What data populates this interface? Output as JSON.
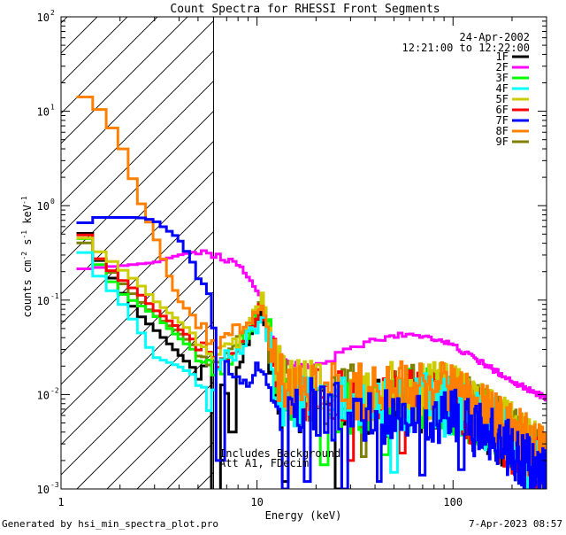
{
  "chart_data": {
    "type": "line",
    "title": "Count Spectra for RHESSI Front Segments",
    "date": "24-Apr-2002",
    "time_range": "12:21:00 to 12:22:00",
    "xlabel": "Energy (keV)",
    "ylabel_main": "counts cm",
    "ylabel_e1": "-2",
    "ylabel_mid": " s",
    "ylabel_e2": "-1",
    "ylabel_unit": " keV",
    "ylabel_e3": "-1",
    "x_scale": "log",
    "y_scale": "log",
    "xlim": [
      1,
      300
    ],
    "ylim": [
      0.001,
      100
    ],
    "x_tick_labels": [
      {
        "value": 1,
        "label": "1"
      },
      {
        "value": 10,
        "label": "10"
      },
      {
        "value": 100,
        "label": "100"
      }
    ],
    "y_tick_labels": [
      {
        "exp": -3,
        "label": "10",
        "sup": "-3"
      },
      {
        "exp": -2,
        "label": "10",
        "sup": "-2"
      },
      {
        "exp": -1,
        "label": "10",
        "sup": "-1"
      },
      {
        "exp": 0,
        "label": "10",
        "sup": "0"
      },
      {
        "exp": 1,
        "label": "10",
        "sup": "1"
      },
      {
        "exp": 2,
        "label": "10",
        "sup": "2"
      }
    ],
    "hatched_region": [
      1,
      6
    ],
    "annotations": [
      "Includes Background",
      "Att A1, FDecim"
    ],
    "series": [
      {
        "name": "1F",
        "color": "#000000",
        "anchors": [
          [
            1.2,
            0.75
          ],
          [
            1.5,
            0.3
          ],
          [
            2,
            0.13
          ],
          [
            2.5,
            0.07
          ],
          [
            3,
            0.05
          ],
          [
            4,
            0.027
          ],
          [
            5,
            0.017
          ],
          [
            5.6,
            0.025
          ],
          [
            6,
            0.02
          ],
          [
            7,
            0.012
          ],
          [
            8,
            0.02
          ],
          [
            9,
            0.035
          ],
          [
            10,
            0.06
          ],
          [
            10.7,
            0.09
          ],
          [
            11.5,
            0.03
          ],
          [
            13,
            0.01
          ],
          [
            16,
            0.008
          ],
          [
            20,
            0.008
          ],
          [
            30,
            0.007
          ],
          [
            40,
            0.007
          ],
          [
            60,
            0.008
          ],
          [
            80,
            0.009
          ],
          [
            100,
            0.008
          ],
          [
            150,
            0.005
          ],
          [
            200,
            0.003
          ],
          [
            300,
            0.0015
          ]
        ],
        "dips": [
          [
            6.2,
            0.0009
          ],
          [
            7.5,
            0.004
          ],
          [
            14,
            0.0012
          ],
          [
            26,
            0.001
          ]
        ]
      },
      {
        "name": "2F",
        "color": "#ff00ff",
        "anchors": [
          [
            1.2,
            0.21
          ],
          [
            1.5,
            0.22
          ],
          [
            2,
            0.23
          ],
          [
            3,
            0.25
          ],
          [
            4,
            0.3
          ],
          [
            5,
            0.33
          ],
          [
            6,
            0.3
          ],
          [
            7,
            0.27
          ],
          [
            8,
            0.23
          ],
          [
            9,
            0.18
          ],
          [
            10,
            0.13
          ],
          [
            11,
            0.07
          ],
          [
            12,
            0.04
          ],
          [
            14,
            0.022
          ],
          [
            17,
            0.02
          ],
          [
            20,
            0.02
          ],
          [
            25,
            0.025
          ],
          [
            30,
            0.03
          ],
          [
            40,
            0.038
          ],
          [
            60,
            0.044
          ],
          [
            80,
            0.04
          ],
          [
            100,
            0.033
          ],
          [
            150,
            0.02
          ],
          [
            200,
            0.014
          ],
          [
            300,
            0.009
          ]
        ],
        "dips": []
      },
      {
        "name": "3F",
        "color": "#00ff00",
        "anchors": [
          [
            1.2,
            0.65
          ],
          [
            1.5,
            0.27
          ],
          [
            2,
            0.12
          ],
          [
            2.5,
            0.09
          ],
          [
            3,
            0.07
          ],
          [
            4,
            0.04
          ],
          [
            5,
            0.027
          ],
          [
            6,
            0.018
          ],
          [
            7,
            0.02
          ],
          [
            8,
            0.03
          ],
          [
            9,
            0.045
          ],
          [
            10,
            0.07
          ],
          [
            10.7,
            0.1
          ],
          [
            11.5,
            0.035
          ],
          [
            13,
            0.012
          ],
          [
            16,
            0.009
          ],
          [
            20,
            0.009
          ],
          [
            30,
            0.008
          ],
          [
            40,
            0.008
          ],
          [
            60,
            0.009
          ],
          [
            80,
            0.009
          ],
          [
            100,
            0.008
          ],
          [
            150,
            0.005
          ],
          [
            200,
            0.003
          ],
          [
            300,
            0.0015
          ]
        ],
        "dips": [
          [
            22,
            0.0018
          ],
          [
            45,
            0.0023
          ]
        ]
      },
      {
        "name": "4F",
        "color": "#00ffff",
        "anchors": [
          [
            1.2,
            0.45
          ],
          [
            1.5,
            0.2
          ],
          [
            2,
            0.1
          ],
          [
            2.5,
            0.05
          ],
          [
            3,
            0.025
          ],
          [
            4,
            0.02
          ],
          [
            5,
            0.015
          ],
          [
            5.8,
            0.007
          ],
          [
            6,
            0.012
          ],
          [
            7,
            0.025
          ],
          [
            8,
            0.025
          ],
          [
            9,
            0.04
          ],
          [
            10,
            0.05
          ],
          [
            10.7,
            0.08
          ],
          [
            11.5,
            0.03
          ],
          [
            13,
            0.01
          ],
          [
            16,
            0.008
          ],
          [
            20,
            0.008
          ],
          [
            30,
            0.007
          ],
          [
            40,
            0.007
          ],
          [
            60,
            0.008
          ],
          [
            80,
            0.008
          ],
          [
            100,
            0.007
          ],
          [
            150,
            0.005
          ],
          [
            200,
            0.003
          ],
          [
            300,
            0.0015
          ]
        ],
        "dips": [
          [
            50,
            0.0015
          ]
        ]
      },
      {
        "name": "5F",
        "color": "#cccc00",
        "anchors": [
          [
            1.2,
            0.55
          ],
          [
            1.5,
            0.35
          ],
          [
            2,
            0.22
          ],
          [
            2.5,
            0.15
          ],
          [
            3,
            0.1
          ],
          [
            4,
            0.06
          ],
          [
            5,
            0.04
          ],
          [
            6,
            0.025
          ],
          [
            7,
            0.03
          ],
          [
            8,
            0.035
          ],
          [
            9,
            0.05
          ],
          [
            10,
            0.08
          ],
          [
            10.7,
            0.12
          ],
          [
            11.5,
            0.04
          ],
          [
            13,
            0.015
          ],
          [
            16,
            0.012
          ],
          [
            20,
            0.012
          ],
          [
            30,
            0.011
          ],
          [
            40,
            0.011
          ],
          [
            60,
            0.011
          ],
          [
            80,
            0.011
          ],
          [
            100,
            0.01
          ],
          [
            150,
            0.006
          ],
          [
            200,
            0.004
          ],
          [
            300,
            0.002
          ]
        ],
        "dips": []
      },
      {
        "name": "6F",
        "color": "#ff0000",
        "anchors": [
          [
            1.2,
            0.7
          ],
          [
            1.5,
            0.3
          ],
          [
            2,
            0.17
          ],
          [
            2.5,
            0.12
          ],
          [
            3,
            0.08
          ],
          [
            4,
            0.05
          ],
          [
            5,
            0.035
          ],
          [
            6,
            0.025
          ],
          [
            7,
            0.02
          ],
          [
            8,
            0.03
          ],
          [
            9,
            0.045
          ],
          [
            10,
            0.07
          ],
          [
            10.7,
            0.1
          ],
          [
            11.5,
            0.035
          ],
          [
            13,
            0.012
          ],
          [
            16,
            0.009
          ],
          [
            20,
            0.009
          ],
          [
            30,
            0.009
          ],
          [
            40,
            0.009
          ],
          [
            60,
            0.009
          ],
          [
            80,
            0.009
          ],
          [
            100,
            0.008
          ],
          [
            150,
            0.005
          ],
          [
            200,
            0.003
          ],
          [
            300,
            0.0015
          ]
        ],
        "dips": [
          [
            30,
            0.002
          ],
          [
            55,
            0.0024
          ]
        ]
      },
      {
        "name": "7F",
        "color": "#0000ff",
        "anchors": [
          [
            1.2,
            0.6
          ],
          [
            1.5,
            0.75
          ],
          [
            2,
            0.75
          ],
          [
            2.5,
            0.75
          ],
          [
            3,
            0.7
          ],
          [
            4,
            0.45
          ],
          [
            5,
            0.2
          ],
          [
            5.6,
            0.13
          ],
          [
            6,
            0.05
          ],
          [
            7,
            0.02
          ],
          [
            8,
            0.015
          ],
          [
            9,
            0.012
          ],
          [
            10,
            0.02
          ],
          [
            11,
            0.015
          ],
          [
            13,
            0.008
          ],
          [
            16,
            0.007
          ],
          [
            20,
            0.007
          ],
          [
            30,
            0.006
          ],
          [
            40,
            0.006
          ],
          [
            60,
            0.007
          ],
          [
            80,
            0.006
          ],
          [
            100,
            0.006
          ],
          [
            150,
            0.004
          ],
          [
            200,
            0.0025
          ],
          [
            300,
            0.0012
          ]
        ],
        "dips": [
          [
            6.5,
            0.002
          ],
          [
            14,
            0.001
          ],
          [
            18,
            0.0012
          ],
          [
            28,
            0.001
          ],
          [
            42,
            0.0012
          ],
          [
            70,
            0.0014
          ],
          [
            110,
            0.0016
          ]
        ]
      },
      {
        "name": "8F",
        "color": "#ff8000",
        "anchors": [
          [
            1.2,
            16
          ],
          [
            1.5,
            12
          ],
          [
            2,
            5
          ],
          [
            2.5,
            1.2
          ],
          [
            3,
            0.5
          ],
          [
            3.5,
            0.2
          ],
          [
            4,
            0.1
          ],
          [
            5,
            0.06
          ],
          [
            6,
            0.035
          ],
          [
            7,
            0.04
          ],
          [
            8,
            0.05
          ],
          [
            9,
            0.06
          ],
          [
            10,
            0.08
          ],
          [
            10.7,
            0.1
          ],
          [
            11.5,
            0.04
          ],
          [
            13,
            0.015
          ],
          [
            16,
            0.012
          ],
          [
            20,
            0.012
          ],
          [
            30,
            0.011
          ],
          [
            40,
            0.011
          ],
          [
            60,
            0.011
          ],
          [
            80,
            0.011
          ],
          [
            100,
            0.01
          ],
          [
            150,
            0.006
          ],
          [
            200,
            0.004
          ],
          [
            300,
            0.002
          ]
        ],
        "dips": []
      },
      {
        "name": "9F",
        "color": "#808000",
        "anchors": [
          [
            1.2,
            0.5
          ],
          [
            1.5,
            0.3
          ],
          [
            2,
            0.16
          ],
          [
            2.5,
            0.1
          ],
          [
            3,
            0.07
          ],
          [
            4,
            0.045
          ],
          [
            5,
            0.03
          ],
          [
            6,
            0.02
          ],
          [
            7,
            0.025
          ],
          [
            8,
            0.035
          ],
          [
            9,
            0.05
          ],
          [
            10,
            0.07
          ],
          [
            10.7,
            0.1
          ],
          [
            11.5,
            0.035
          ],
          [
            13,
            0.012
          ],
          [
            16,
            0.01
          ],
          [
            20,
            0.01
          ],
          [
            30,
            0.01
          ],
          [
            40,
            0.01
          ],
          [
            60,
            0.01
          ],
          [
            80,
            0.01
          ],
          [
            100,
            0.009
          ],
          [
            150,
            0.006
          ],
          [
            200,
            0.0035
          ],
          [
            300,
            0.0018
          ]
        ],
        "dips": [
          [
            35,
            0.0022
          ]
        ]
      }
    ]
  },
  "footer": {
    "generator": "Generated by hsi_min_spectra_plot.pro",
    "timestamp": "7-Apr-2023 08:57"
  }
}
